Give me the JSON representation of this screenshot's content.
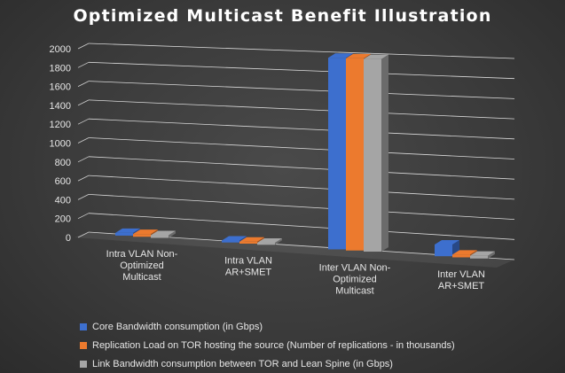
{
  "chart_data": {
    "type": "bar",
    "title": "Optimized Multicast Benefit Illustration",
    "xlabel": "",
    "ylabel": "",
    "ylim": [
      0,
      2000
    ],
    "yticks": [
      "2000",
      "1800",
      "1600",
      "1400",
      "1200",
      "1000",
      "800",
      "600",
      "400",
      "200",
      "0"
    ],
    "categories": [
      [
        "Intra VLAN Non-",
        "Optimized",
        "Multicast"
      ],
      [
        "Intra VLAN",
        "AR+SMET"
      ],
      [
        "Inter VLAN Non-",
        "Optimized",
        "Multicast"
      ],
      [
        "Inter VLAN",
        "AR+SMET"
      ]
    ],
    "series": [
      {
        "name": "Core Bandwidth consumption (in Gbps)",
        "color": "#3d6fce",
        "values": [
          10,
          2,
          1940,
          100
        ]
      },
      {
        "name": "Replication Load on TOR hosting the source (Number of replications - in thousands)",
        "color": "#ec7a2e",
        "values": [
          10,
          2,
          1940,
          10
        ]
      },
      {
        "name": "Link Bandwidth consumption between TOR and Lean Spine (in Gbps)",
        "color": "#a5a5a5",
        "values": [
          10,
          2,
          1940,
          10
        ]
      }
    ],
    "grid": true,
    "legend_position": "bottom",
    "projection": "3d"
  }
}
